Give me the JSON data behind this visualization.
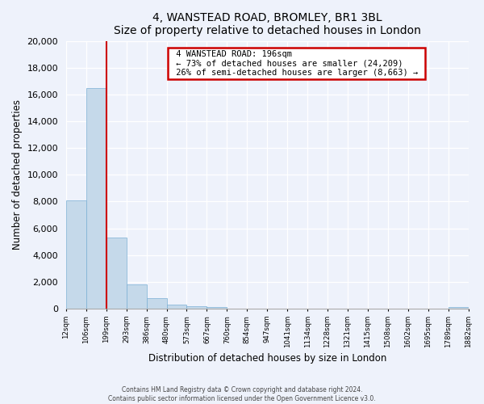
{
  "title": "4, WANSTEAD ROAD, BROMLEY, BR1 3BL",
  "subtitle": "Size of property relative to detached houses in London",
  "xlabel": "Distribution of detached houses by size in London",
  "ylabel": "Number of detached properties",
  "bar_values": [
    8100,
    16500,
    5300,
    1800,
    800,
    300,
    200,
    100,
    0,
    0,
    0,
    0,
    0,
    0,
    0,
    0,
    0,
    0,
    0,
    100
  ],
  "bar_labels": [
    "12sqm",
    "106sqm",
    "199sqm",
    "293sqm",
    "386sqm",
    "480sqm",
    "573sqm",
    "667sqm",
    "760sqm",
    "854sqm",
    "947sqm",
    "1041sqm",
    "1134sqm",
    "1228sqm",
    "1321sqm",
    "1415sqm",
    "1508sqm",
    "1602sqm",
    "1695sqm",
    "1789sqm",
    "1882sqm"
  ],
  "bar_color": "#c5d9ea",
  "bar_edge_color": "#7bafd4",
  "property_line_color": "#cc0000",
  "annotation_title": "4 WANSTEAD ROAD: 196sqm",
  "annotation_line1": "← 73% of detached houses are smaller (24,209)",
  "annotation_line2": "26% of semi-detached houses are larger (8,663) →",
  "annotation_box_color": "#ffffff",
  "annotation_box_edge": "#cc0000",
  "ylim": [
    0,
    20000
  ],
  "yticks": [
    0,
    2000,
    4000,
    6000,
    8000,
    10000,
    12000,
    14000,
    16000,
    18000,
    20000
  ],
  "footer_line1": "Contains HM Land Registry data © Crown copyright and database right 2024.",
  "footer_line2": "Contains public sector information licensed under the Open Government Licence v3.0.",
  "background_color": "#eef2fb"
}
